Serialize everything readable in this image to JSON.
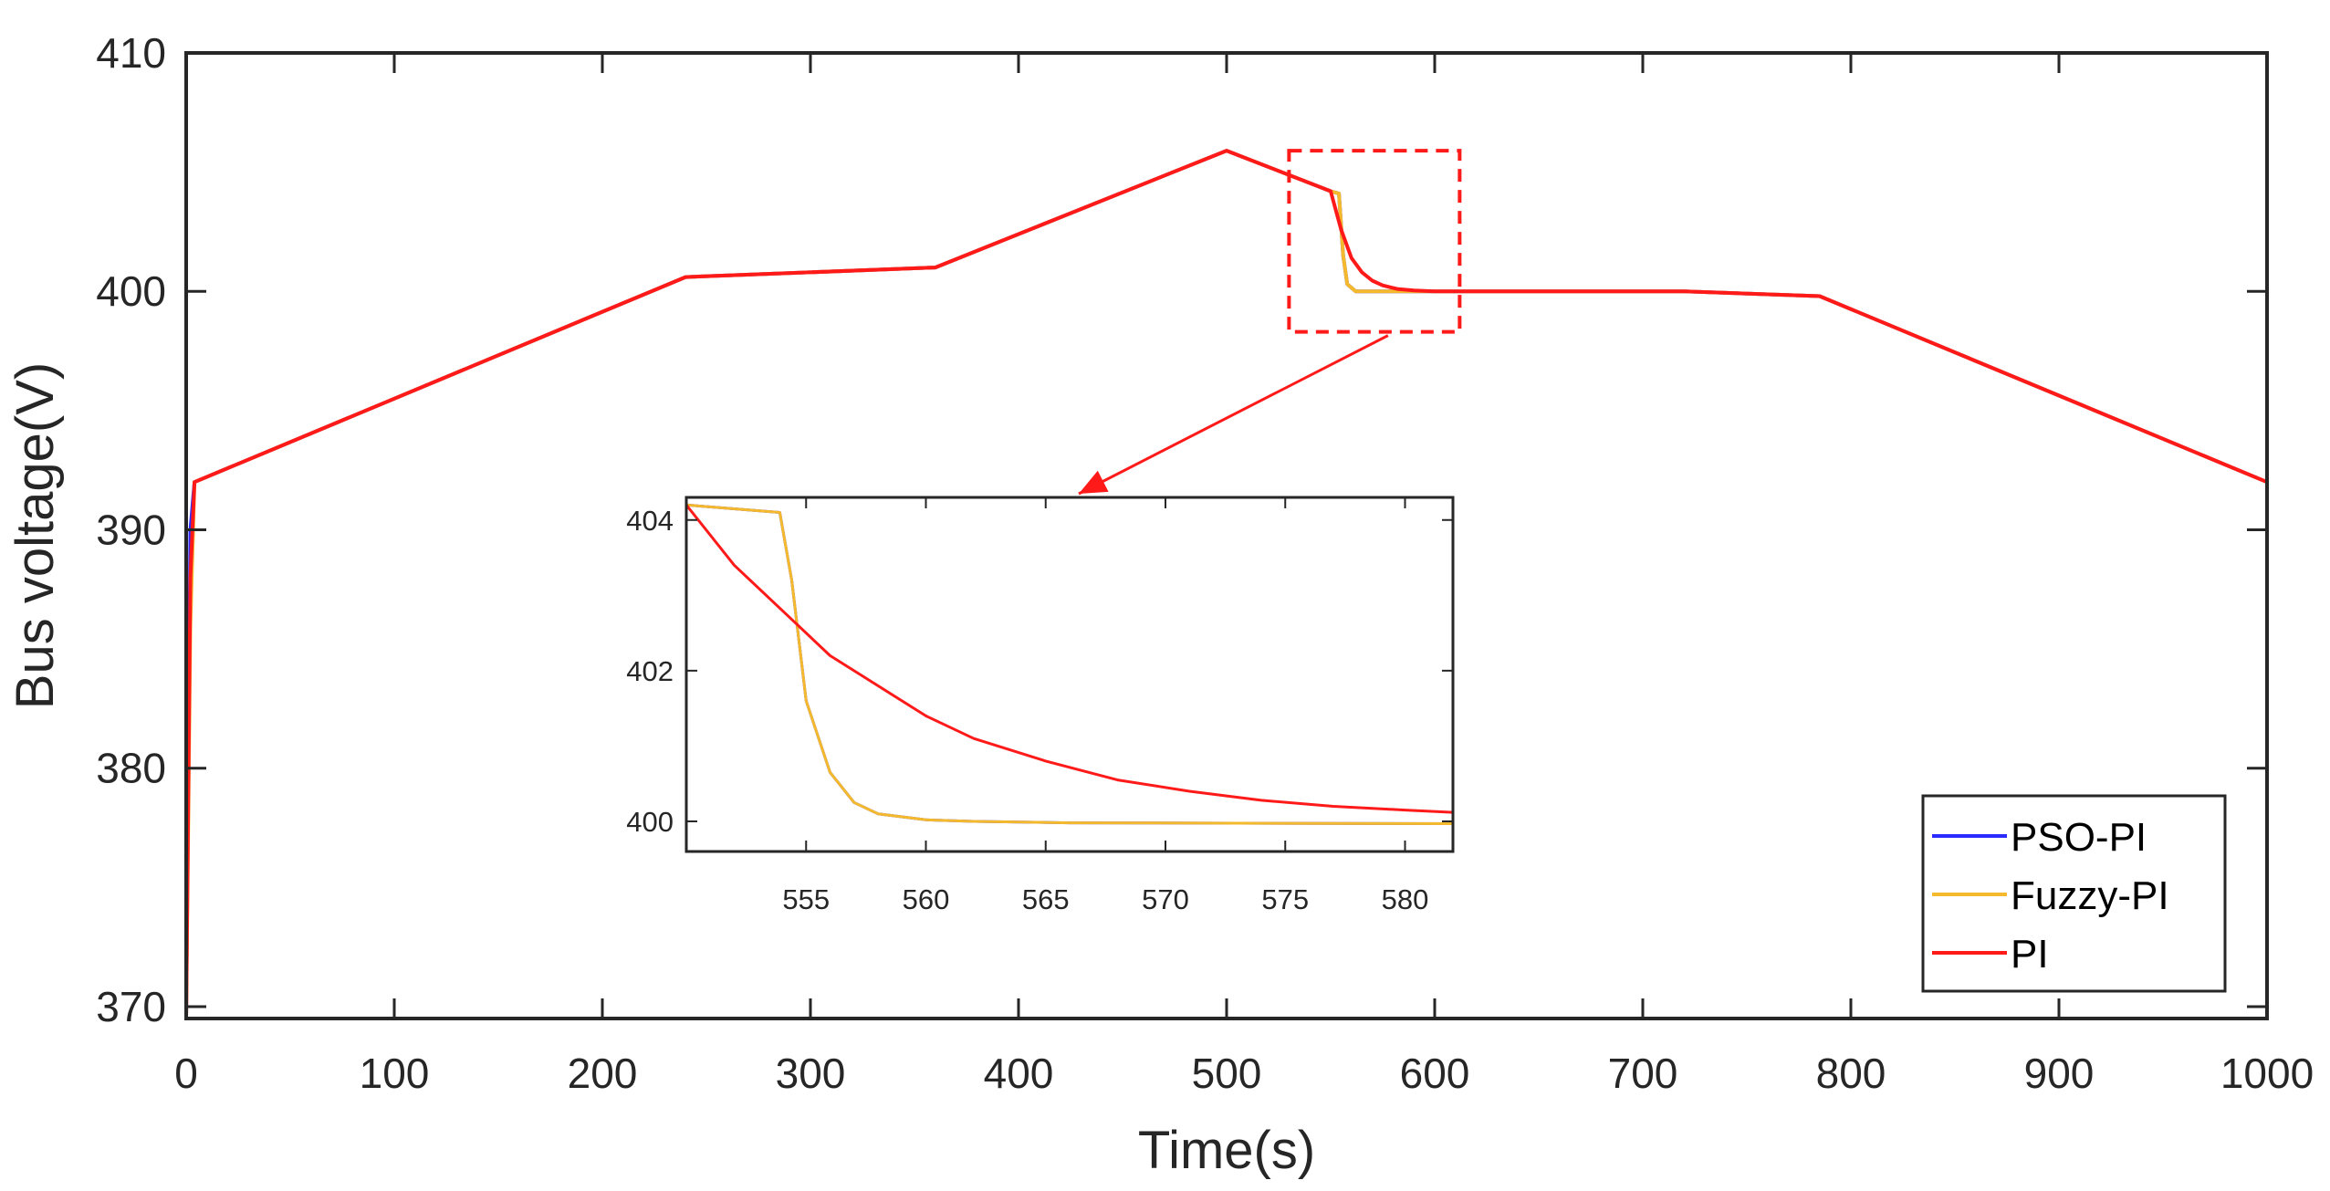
{
  "chart_data": {
    "type": "line",
    "title": "",
    "xlabel": "Time(s)",
    "ylabel": "Bus voltage(V)",
    "xlim": [
      0,
      1000
    ],
    "ylim": [
      369.5,
      410
    ],
    "xticks": [
      0,
      100,
      200,
      300,
      400,
      500,
      600,
      700,
      800,
      900,
      1000
    ],
    "yticks": [
      370,
      380,
      390,
      400,
      410
    ],
    "grid": false,
    "legend_position": "bottom-right",
    "series": [
      {
        "name": "PSO-PI",
        "color": "#2b2bff",
        "x": [
          0,
          2,
          4,
          240,
          360,
          500,
          550,
          554,
          556,
          558,
          562,
          600,
          720,
          785,
          1000
        ],
        "y": [
          369.5,
          390,
          392,
          400.6,
          401,
          405.9,
          404.2,
          404.1,
          401.5,
          400.3,
          400,
          400,
          400,
          399.8,
          392
        ]
      },
      {
        "name": "Fuzzy-PI",
        "color": "#f5b92e",
        "x": [
          0,
          2,
          4,
          240,
          360,
          500,
          550,
          554,
          556,
          558,
          562,
          600,
          720,
          785,
          1000
        ],
        "y": [
          369.5,
          386,
          392,
          400.6,
          401,
          405.9,
          404.2,
          404.1,
          401.5,
          400.3,
          400,
          400,
          400,
          399.8,
          392
        ]
      },
      {
        "name": "PI",
        "color": "#ff1a1a",
        "x": [
          0,
          2,
          4,
          240,
          360,
          500,
          550,
          555,
          560,
          565,
          570,
          575,
          582,
          590,
          600,
          720,
          785,
          1000
        ],
        "y": [
          369.5,
          388,
          392,
          400.6,
          401,
          405.9,
          404.2,
          402.6,
          401.4,
          400.8,
          400.45,
          400.25,
          400.1,
          400.04,
          400,
          400,
          399.8,
          392
        ]
      }
    ],
    "zoom_box": {
      "xlim": [
        530,
        612
      ],
      "ylim": [
        398.3,
        405.9
      ],
      "style": "dashed red rectangle with arrow to inset"
    },
    "inset": {
      "xlim": [
        550,
        582
      ],
      "ylim": [
        399.6,
        404.3
      ],
      "xticks": [
        555,
        560,
        565,
        570,
        575,
        580
      ],
      "yticks": [
        400,
        402,
        404
      ],
      "series": [
        {
          "name": "PSO-PI",
          "color": "#2b2bff",
          "x": [
            550,
            553.9,
            554.4,
            555,
            556,
            557,
            558,
            560,
            562,
            566,
            582
          ],
          "y": [
            404.2,
            404.1,
            403.2,
            401.6,
            400.65,
            400.25,
            400.1,
            400.02,
            400,
            399.98,
            399.97
          ]
        },
        {
          "name": "Fuzzy-PI",
          "color": "#f5b92e",
          "x": [
            550,
            553.9,
            554.4,
            555,
            556,
            557,
            558,
            560,
            562,
            566,
            582
          ],
          "y": [
            404.2,
            404.1,
            403.2,
            401.6,
            400.65,
            400.25,
            400.1,
            400.02,
            400,
            399.98,
            399.97
          ]
        },
        {
          "name": "PI",
          "color": "#ff1a1a",
          "x": [
            550,
            552,
            554,
            556,
            558,
            560,
            562,
            565,
            568,
            571,
            574,
            577,
            580,
            582
          ],
          "y": [
            404.2,
            403.4,
            402.8,
            402.2,
            401.8,
            401.4,
            401.1,
            400.8,
            400.55,
            400.4,
            400.28,
            400.2,
            400.15,
            400.12
          ]
        }
      ]
    }
  }
}
